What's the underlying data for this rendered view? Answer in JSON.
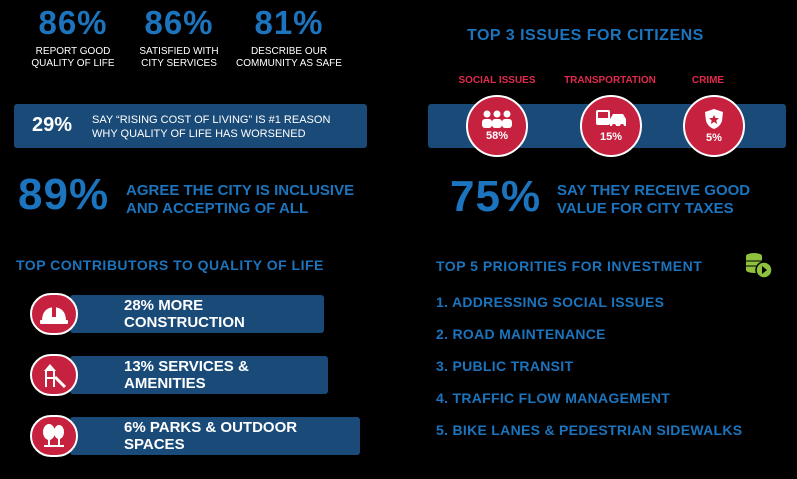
{
  "stats": [
    {
      "value": "86%",
      "label_1": "REPORT GOOD",
      "label_2": "QUALITY OF LIFE"
    },
    {
      "value": "86%",
      "label_1": "SATISFIED WITH",
      "label_2": "CITY SERVICES"
    },
    {
      "value": "81%",
      "label_1": "DESCRIBE OUR",
      "label_2": "COMMUNITY AS SAFE"
    }
  ],
  "cost_banner": {
    "value": "29%",
    "line_1": "SAY “RISING COST OF LIVING” IS #1 REASON",
    "line_2": "WHY QUALITY OF LIFE HAS WORSENED"
  },
  "inclusive": {
    "value": "89%",
    "line_1": "AGREE THE CITY IS INCLUSIVE",
    "line_2": "AND ACCEPTING OF ALL"
  },
  "contributors": {
    "heading": "TOP CONTRIBUTORS TO QUALITY OF LIFE",
    "items": [
      {
        "label": "28% MORE CONSTRUCTION",
        "icon": "hard-hat-icon"
      },
      {
        "label": "13% SERVICES & AMENITIES",
        "icon": "playground-icon"
      },
      {
        "label": "6% PARKS & OUTDOOR SPACES",
        "icon": "trees-bench-icon"
      }
    ]
  },
  "issues": {
    "heading": "TOP 3 ISSUES FOR CITIZENS",
    "items": [
      {
        "label": "SOCIAL ISSUES",
        "value": "58%",
        "icon": "people-icon"
      },
      {
        "label": "TRANSPORTATION",
        "value": "15%",
        "icon": "vehicles-icon"
      },
      {
        "label": "CRIME",
        "value": "5%",
        "icon": "police-badge-icon"
      }
    ]
  },
  "taxes": {
    "value": "75%",
    "line_1": "SAY THEY RECEIVE GOOD",
    "line_2": "VALUE FOR CITY TAXES"
  },
  "priorities": {
    "heading": "TOP 5 PRIORITIES FOR INVESTMENT",
    "icon": "coins-icon",
    "items": [
      "1. ADDRESSING SOCIAL ISSUES",
      "2. ROAD MAINTENANCE",
      "3. PUBLIC TRANSIT",
      "4. TRAFFIC FLOW MANAGEMENT",
      "5. BIKE LANES & PEDESTRIAN SIDEWALKS"
    ]
  },
  "colors": {
    "accent_blue": "#1b74bd",
    "bar_navy": "#1a4b78",
    "red": "#c6213f",
    "green": "#8fc13e"
  }
}
